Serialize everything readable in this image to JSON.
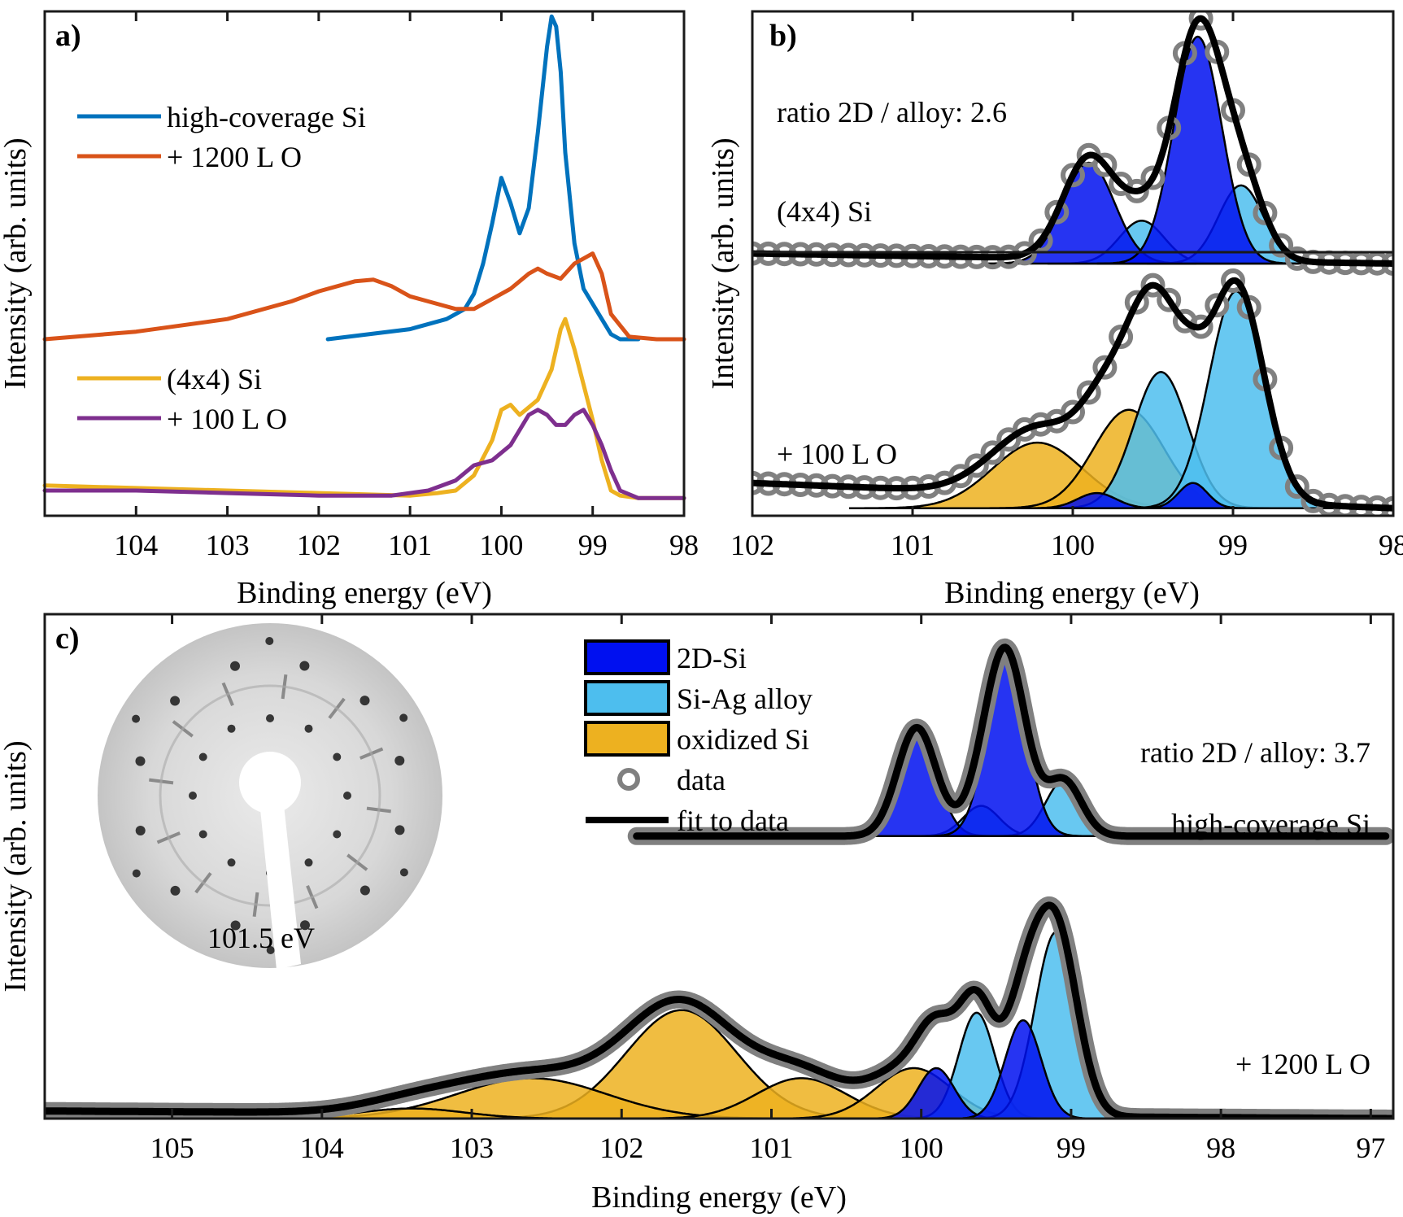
{
  "figure": {
    "colors": {
      "blue_line": "#0072bd",
      "orange_line": "#d95319",
      "yellow_line": "#edb120",
      "purple_line": "#7e2f8e",
      "fill_2d": "#0010f0",
      "fill_alloy": "#4dbeee",
      "fill_oxide": "#edb120",
      "data_marker": "#808080",
      "fit": "#000000"
    }
  },
  "chart_data": [
    {
      "panel": "a)",
      "type": "line",
      "xlabel": "Binding energy (eV)",
      "ylabel": "Intensity (arb. units)",
      "xlim": [
        105,
        98
      ],
      "x_reversed": true,
      "ylim": [
        0,
        1
      ],
      "x_ticks": [
        "104",
        "103",
        "102",
        "101",
        "100",
        "99",
        "98"
      ],
      "legend_top": [
        "high-coverage Si",
        "+ 1200 L O"
      ],
      "legend_bottom": [
        "(4x4) Si",
        "+ 100 L O"
      ],
      "series": [
        {
          "name": "high-coverage Si",
          "color": "#0072bd",
          "x": [
            101.9,
            101.0,
            100.6,
            100.4,
            100.3,
            100.2,
            100.1,
            100.0,
            99.9,
            99.8,
            99.7,
            99.6,
            99.5,
            99.45,
            99.4,
            99.35,
            99.3,
            99.2,
            99.1,
            99.0,
            98.9,
            98.8,
            98.7,
            98.5
          ],
          "y": [
            0.35,
            0.37,
            0.39,
            0.41,
            0.44,
            0.5,
            0.58,
            0.67,
            0.62,
            0.56,
            0.61,
            0.76,
            0.93,
            0.99,
            0.97,
            0.88,
            0.72,
            0.54,
            0.45,
            0.42,
            0.39,
            0.36,
            0.35,
            0.35
          ]
        },
        {
          "name": "+ 1200 L O",
          "color": "#d95319",
          "x": [
            105,
            104,
            103,
            102.3,
            102,
            101.6,
            101.4,
            101.2,
            101.0,
            100.8,
            100.5,
            100.3,
            100.1,
            99.9,
            99.7,
            99.6,
            99.5,
            99.35,
            99.2,
            99.1,
            99.0,
            98.9,
            98.8,
            98.6,
            98.3,
            98.0
          ],
          "y": [
            0.35,
            0.365,
            0.39,
            0.425,
            0.445,
            0.465,
            0.468,
            0.455,
            0.435,
            0.425,
            0.41,
            0.41,
            0.43,
            0.45,
            0.48,
            0.49,
            0.48,
            0.47,
            0.5,
            0.51,
            0.52,
            0.48,
            0.4,
            0.355,
            0.35,
            0.35
          ]
        },
        {
          "name": "(4x4) Si",
          "color": "#edb120",
          "x": [
            105,
            104,
            103,
            102,
            101,
            100.7,
            100.5,
            100.3,
            100.1,
            100.0,
            99.9,
            99.8,
            99.6,
            99.45,
            99.35,
            99.3,
            99.2,
            99.1,
            99.0,
            98.9,
            98.8,
            98.7,
            98.5,
            98.0
          ],
          "y": [
            0.06,
            0.055,
            0.05,
            0.045,
            0.04,
            0.045,
            0.05,
            0.08,
            0.15,
            0.21,
            0.22,
            0.2,
            0.23,
            0.29,
            0.37,
            0.39,
            0.33,
            0.26,
            0.19,
            0.11,
            0.05,
            0.04,
            0.035,
            0.035
          ]
        },
        {
          "name": "+ 100 L O",
          "color": "#7e2f8e",
          "x": [
            105,
            104,
            103,
            102,
            101.2,
            100.8,
            100.5,
            100.3,
            100.1,
            99.9,
            99.8,
            99.7,
            99.6,
            99.5,
            99.4,
            99.3,
            99.2,
            99.1,
            99.0,
            98.9,
            98.8,
            98.7,
            98.5,
            98.0
          ],
          "y": [
            0.05,
            0.05,
            0.045,
            0.04,
            0.04,
            0.05,
            0.07,
            0.1,
            0.11,
            0.14,
            0.17,
            0.2,
            0.21,
            0.2,
            0.18,
            0.18,
            0.2,
            0.21,
            0.18,
            0.14,
            0.09,
            0.05,
            0.035,
            0.035
          ]
        }
      ]
    },
    {
      "panel": "b)",
      "type": "area",
      "xlabel": "Binding energy (eV)",
      "ylabel": "Intensity (arb. units)",
      "xlim": [
        102,
        98
      ],
      "x_reversed": true,
      "ylim": [
        0,
        1
      ],
      "x_ticks": [
        "102",
        "101",
        "100",
        "99",
        "98"
      ],
      "annotations": [
        "ratio 2D / alloy: 2.6",
        "(4x4) Si",
        "+ 100 L O"
      ],
      "components": [
        {
          "spectrum": "(4x4) Si",
          "kind": "2D-Si",
          "center": 99.9,
          "width": 0.16,
          "height": 0.2,
          "baseline": 0.5
        },
        {
          "spectrum": "(4x4) Si",
          "kind": "2D-Si",
          "center": 99.22,
          "width": 0.15,
          "height": 0.45,
          "baseline": 0.5
        },
        {
          "spectrum": "(4x4) Si",
          "kind": "alloy",
          "center": 99.57,
          "width": 0.14,
          "height": 0.085,
          "baseline": 0.5
        },
        {
          "spectrum": "(4x4) Si",
          "kind": "alloy",
          "center": 98.95,
          "width": 0.14,
          "height": 0.155,
          "baseline": 0.5
        },
        {
          "spectrum": "+ 100 L O",
          "kind": "oxide",
          "center": 100.22,
          "width": 0.28,
          "height": 0.13,
          "baseline": 0.015
        },
        {
          "spectrum": "+ 100 L O",
          "kind": "oxide",
          "center": 99.65,
          "width": 0.22,
          "height": 0.195,
          "baseline": 0.015
        },
        {
          "spectrum": "+ 100 L O",
          "kind": "2D-Si",
          "center": 99.85,
          "width": 0.12,
          "height": 0.03,
          "baseline": 0.015
        },
        {
          "spectrum": "+ 100 L O",
          "kind": "2D-Si",
          "center": 99.25,
          "width": 0.09,
          "height": 0.05,
          "baseline": 0.015
        },
        {
          "spectrum": "+ 100 L O",
          "kind": "alloy",
          "center": 99.45,
          "width": 0.17,
          "height": 0.27,
          "baseline": 0.015
        },
        {
          "spectrum": "+ 100 L O",
          "kind": "alloy",
          "center": 98.98,
          "width": 0.17,
          "height": 0.43,
          "baseline": 0.015
        }
      ],
      "fit_y_offsets": {
        "(4x4) Si": 0.02,
        "+ 100 L O": 0.05
      }
    },
    {
      "panel": "c)",
      "type": "area",
      "xlabel": "Binding energy (eV)",
      "ylabel": "Intensity (arb. units)",
      "xlim": [
        105.85,
        96.85
      ],
      "x_reversed": true,
      "ylim": [
        0,
        1
      ],
      "x_ticks": [
        "105",
        "104",
        "103",
        "102",
        "101",
        "100",
        "99",
        "98",
        "97"
      ],
      "legend": [
        {
          "label": "2D-Si",
          "kind": "2D-Si"
        },
        {
          "label": "Si-Ag alloy",
          "kind": "alloy"
        },
        {
          "label": "oxidized Si",
          "kind": "oxide"
        },
        {
          "label": "data",
          "kind": "data"
        },
        {
          "label": "fit to data",
          "kind": "fit"
        }
      ],
      "annotations": [
        "ratio 2D / alloy: 3.7",
        "high-coverage Si",
        "+ 1200 L O"
      ],
      "inset_label": "101.5 eV",
      "components": [
        {
          "spectrum": "high-coverage Si",
          "kind": "2D-Si",
          "center": 100.03,
          "width": 0.13,
          "height": 0.215,
          "baseline": 0.56
        },
        {
          "spectrum": "high-coverage Si",
          "kind": "2D-Si",
          "center": 99.43,
          "width": 0.13,
          "height": 0.35,
          "baseline": 0.56
        },
        {
          "spectrum": "high-coverage Si",
          "kind": "alloy",
          "center": 99.6,
          "width": 0.12,
          "height": 0.06,
          "baseline": 0.56
        },
        {
          "spectrum": "high-coverage Si",
          "kind": "alloy",
          "center": 99.05,
          "width": 0.12,
          "height": 0.11,
          "baseline": 0.56
        },
        {
          "spectrum": "+ 1200 L O",
          "kind": "oxide",
          "center": 101.6,
          "width": 0.37,
          "height": 0.215,
          "baseline": 0.0
        },
        {
          "spectrum": "+ 1200 L O",
          "kind": "oxide",
          "center": 102.6,
          "width": 0.5,
          "height": 0.08,
          "baseline": 0.0
        },
        {
          "spectrum": "+ 1200 L O",
          "kind": "oxide",
          "center": 103.4,
          "width": 0.35,
          "height": 0.02,
          "baseline": 0.0
        },
        {
          "spectrum": "+ 1200 L O",
          "kind": "oxide",
          "center": 100.8,
          "width": 0.3,
          "height": 0.08,
          "baseline": 0.0
        },
        {
          "spectrum": "+ 1200 L O",
          "kind": "oxide",
          "center": 100.05,
          "width": 0.25,
          "height": 0.1,
          "baseline": 0.0
        },
        {
          "spectrum": "+ 1200 L O",
          "kind": "2D-Si",
          "center": 99.9,
          "width": 0.12,
          "height": 0.1,
          "baseline": 0.0
        },
        {
          "spectrum": "+ 1200 L O",
          "kind": "2D-Si",
          "center": 99.32,
          "width": 0.12,
          "height": 0.195,
          "baseline": 0.0
        },
        {
          "spectrum": "+ 1200 L O",
          "kind": "alloy",
          "center": 99.63,
          "width": 0.12,
          "height": 0.21,
          "baseline": 0.0
        },
        {
          "spectrum": "+ 1200 L O",
          "kind": "alloy",
          "center": 99.1,
          "width": 0.14,
          "height": 0.37,
          "baseline": 0.0
        }
      ],
      "fit_y_offsets": {
        "high-coverage Si": 0.0,
        "+ 1200 L O": 0.015
      },
      "data_extent": {
        "high-coverage Si": [
          101.9,
          96.9
        ],
        "+ 1200 L O": [
          105.85,
          96.85
        ]
      }
    }
  ]
}
